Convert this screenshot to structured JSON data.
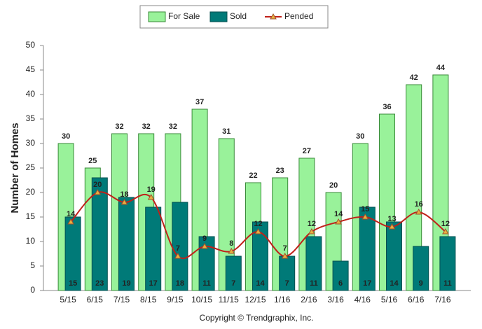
{
  "chart_data": {
    "type": "bar",
    "y_label": "Number of Homes",
    "note": "Copyright © Trendgraphix, Inc.",
    "categories": [
      "5/15",
      "6/15",
      "7/15",
      "8/15",
      "9/15",
      "10/15",
      "11/15",
      "12/15",
      "1/16",
      "2/16",
      "3/16",
      "4/16",
      "5/16",
      "6/16",
      "7/16"
    ],
    "series": [
      {
        "name": "For Sale",
        "type": "bar",
        "color": "#99f29a",
        "values": [
          30,
          25,
          32,
          32,
          32,
          37,
          31,
          22,
          23,
          27,
          20,
          30,
          36,
          42,
          44
        ]
      },
      {
        "name": "Sold",
        "type": "bar",
        "color": "#007a78",
        "values": [
          15,
          23,
          19,
          17,
          18,
          11,
          7,
          14,
          7,
          11,
          6,
          17,
          14,
          9,
          11
        ]
      },
      {
        "name": "Pended",
        "type": "line",
        "color": "#c0201a",
        "values": [
          14,
          20,
          18,
          19,
          7,
          9,
          8,
          12,
          7,
          12,
          14,
          15,
          13,
          16,
          12
        ]
      }
    ],
    "ylim": [
      0,
      50
    ],
    "yticks": [
      0,
      5,
      10,
      15,
      20,
      25,
      30,
      35,
      40,
      45,
      50
    ],
    "grid": false,
    "legend": "top"
  }
}
